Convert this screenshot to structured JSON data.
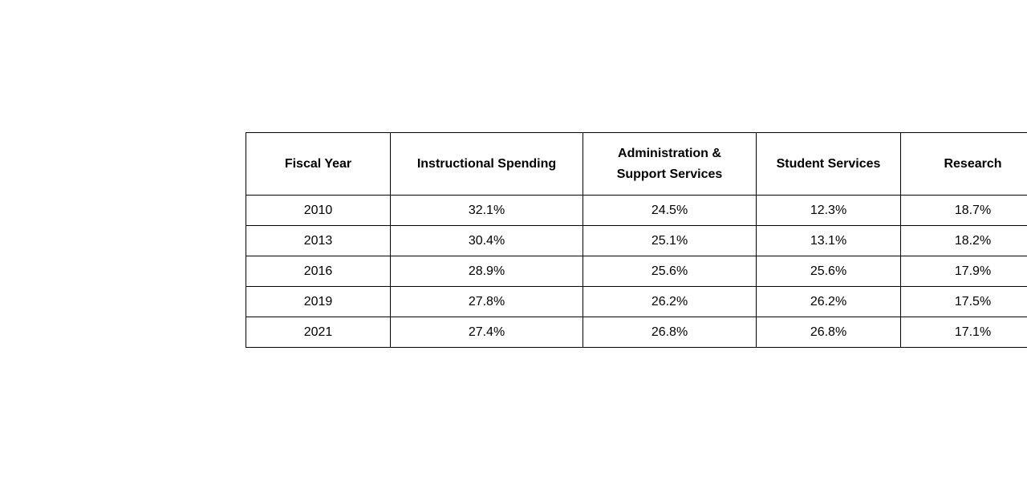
{
  "table": {
    "headers": [
      "Fiscal Year",
      "Instructional Spending",
      "Administration & Support Services",
      "Student Services",
      "Research"
    ],
    "rows": [
      [
        "2010",
        "32.1%",
        "24.5%",
        "12.3%",
        "18.7%"
      ],
      [
        "2013",
        "30.4%",
        "25.1%",
        "13.1%",
        "18.2%"
      ],
      [
        "2016",
        "28.9%",
        "25.6%",
        "25.6%",
        "17.9%"
      ],
      [
        "2019",
        "27.8%",
        "26.2%",
        "26.2%",
        "17.5%"
      ],
      [
        "2021",
        "27.4%",
        "26.8%",
        "26.8%",
        "17.1%"
      ]
    ]
  }
}
